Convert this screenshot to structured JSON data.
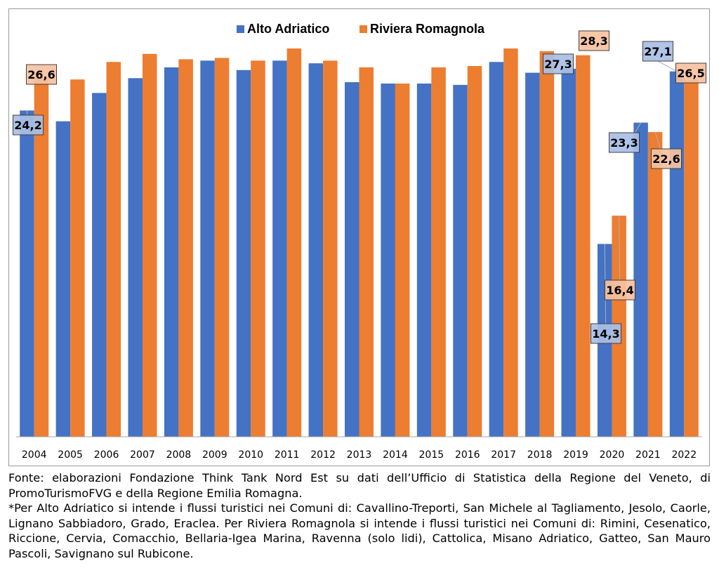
{
  "chart_data": {
    "type": "bar",
    "categories": [
      "2004",
      "2005",
      "2006",
      "2007",
      "2008",
      "2009",
      "2010",
      "2011",
      "2012",
      "2013",
      "2014",
      "2015",
      "2016",
      "2017",
      "2018",
      "2019",
      "2020",
      "2021",
      "2022"
    ],
    "series": [
      {
        "name": "Alto Adriatico",
        "color": "#4472C4",
        "values": [
          24.2,
          23.4,
          25.5,
          26.6,
          27.4,
          27.9,
          27.2,
          27.9,
          27.7,
          26.3,
          26.2,
          26.2,
          26.1,
          27.8,
          27.0,
          27.3,
          14.3,
          23.3,
          27.1
        ],
        "labels": {
          "2004": "24,2",
          "2019": "27,3",
          "2020": "14,3",
          "2021": "23,3",
          "2022": "27,1"
        }
      },
      {
        "name": "Riviera Romagnola",
        "color": "#ED7D31",
        "values": [
          26.6,
          26.5,
          27.8,
          28.4,
          28.0,
          28.1,
          27.9,
          28.8,
          27.9,
          27.4,
          26.2,
          27.4,
          27.5,
          28.8,
          28.6,
          28.3,
          16.4,
          22.6,
          26.5
        ],
        "labels": {
          "2004": "26,6",
          "2019": "28,3",
          "2020": "16,4",
          "2021": "22,6",
          "2022": "26,5"
        }
      }
    ],
    "legend_position": "top-center",
    "grid": false,
    "ylim": [
      0,
      30
    ]
  },
  "notes": {
    "source": "Fonte: elaborazioni Fondazione Think Tank Nord Est su dati dell’Ufficio di Statistica della Regione del Veneto, di PromoTurismoFVG e della Regione Emilia Romagna.",
    "footnote": "*Per Alto Adriatico si intende i flussi turistici nei Comuni di: Cavallino-Treporti, San Michele al Tagliamento, Jesolo, Caorle, Lignano Sabbiadoro, Grado, Eraclea. Per Riviera Romagnola si intende i flussi turistici nei Comuni di: Rimini, Cesenatico, Riccione, Cervia, Comacchio, Bellaria-Igea Marina, Ravenna (solo lidi), Cattolica, Misano Adriatico, Gatteo, San Mauro Pascoli, Savignano sul Rubicone."
  }
}
